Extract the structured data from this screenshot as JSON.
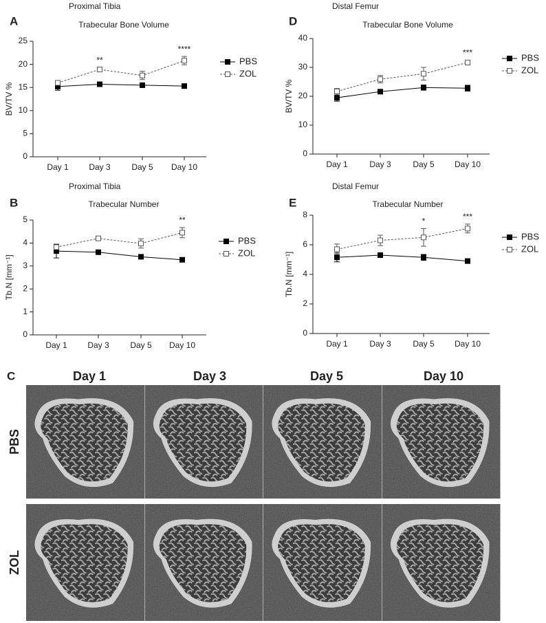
{
  "chart_data": [
    {
      "type": "line",
      "panel": "A",
      "title": "Proximal Tibia",
      "subtitle": "Trabecular Bone Volume",
      "ylabel": "BV/TV %",
      "categories": [
        "Day 1",
        "Day 3",
        "Day 5",
        "Day 10"
      ],
      "ylim": [
        0,
        25
      ],
      "yticks": [
        0,
        5,
        10,
        15,
        20,
        25
      ],
      "series": [
        {
          "name": "PBS",
          "color": "#000000",
          "marker_fill": "#000000",
          "line_style": "solid",
          "values": [
            15.2,
            15.7,
            15.5,
            15.3
          ],
          "errors": [
            0.8,
            0.3,
            0.5,
            0.3
          ]
        },
        {
          "name": "ZOL",
          "color": "#555555",
          "marker_fill": "#ffffff",
          "line_style": "dashed",
          "values": [
            16.0,
            18.9,
            17.6,
            20.8
          ],
          "errors": [
            0.5,
            0.4,
            0.9,
            0.9
          ]
        }
      ],
      "annotations": [
        null,
        "**",
        null,
        "****"
      ]
    },
    {
      "type": "line",
      "panel": "D",
      "title": "Distal Femur",
      "subtitle": "Trabecular Bone Volume",
      "ylabel": "BV/TV %",
      "categories": [
        "Day 1",
        "Day 3",
        "Day 5",
        "Day 10"
      ],
      "ylim": [
        0,
        40
      ],
      "yticks": [
        0,
        10,
        20,
        30,
        40
      ],
      "series": [
        {
          "name": "PBS",
          "color": "#000000",
          "marker_fill": "#000000",
          "line_style": "solid",
          "values": [
            19.5,
            21.6,
            23.0,
            22.8
          ],
          "errors": [
            1.2,
            0.6,
            0.9,
            1.0
          ]
        },
        {
          "name": "ZOL",
          "color": "#555555",
          "marker_fill": "#ffffff",
          "line_style": "dashed",
          "values": [
            21.7,
            25.9,
            27.8,
            31.7
          ],
          "errors": [
            1.0,
            1.3,
            2.2,
            0.8
          ]
        }
      ],
      "annotations": [
        null,
        null,
        null,
        "***"
      ]
    },
    {
      "type": "line",
      "panel": "B",
      "title": "Proximal Tibia",
      "subtitle": "Trabecular Number",
      "ylabel": "Tb.N [mm⁻¹]",
      "categories": [
        "Day 1",
        "Day 3",
        "Day 5",
        "Day 10"
      ],
      "ylim": [
        0,
        5
      ],
      "yticks": [
        0,
        1,
        2,
        3,
        4,
        5
      ],
      "series": [
        {
          "name": "PBS",
          "color": "#000000",
          "marker_fill": "#000000",
          "line_style": "solid",
          "values": [
            3.65,
            3.6,
            3.4,
            3.27
          ],
          "errors": [
            0.3,
            0.05,
            0.05,
            0.05
          ]
        },
        {
          "name": "ZOL",
          "color": "#555555",
          "marker_fill": "#ffffff",
          "line_style": "dashed",
          "values": [
            3.82,
            4.2,
            3.98,
            4.45
          ],
          "errors": [
            0.1,
            0.1,
            0.2,
            0.22
          ]
        }
      ],
      "annotations": [
        null,
        null,
        null,
        "**"
      ]
    },
    {
      "type": "line",
      "panel": "E",
      "title": "Distal Femur",
      "subtitle": "Trabecular Number",
      "ylabel": "Tb.N [mm⁻¹]",
      "categories": [
        "Day 1",
        "Day 3",
        "Day 5",
        "Day 10"
      ],
      "ylim": [
        0,
        8
      ],
      "yticks": [
        0,
        2,
        4,
        6,
        8
      ],
      "series": [
        {
          "name": "PBS",
          "color": "#000000",
          "marker_fill": "#000000",
          "line_style": "solid",
          "values": [
            5.15,
            5.3,
            5.15,
            4.9
          ],
          "errors": [
            0.3,
            0.1,
            0.2,
            0.15
          ]
        },
        {
          "name": "ZOL",
          "color": "#555555",
          "marker_fill": "#ffffff",
          "line_style": "dashed",
          "values": [
            5.7,
            6.3,
            6.5,
            7.1
          ],
          "errors": [
            0.35,
            0.35,
            0.6,
            0.3
          ]
        }
      ],
      "annotations": [
        null,
        null,
        "*",
        "***"
      ]
    }
  ],
  "image_panel": {
    "panel": "C",
    "columns": [
      "Day 1",
      "Day 3",
      "Day 5",
      "Day 10"
    ],
    "rows": [
      "PBS",
      "ZOL"
    ]
  }
}
